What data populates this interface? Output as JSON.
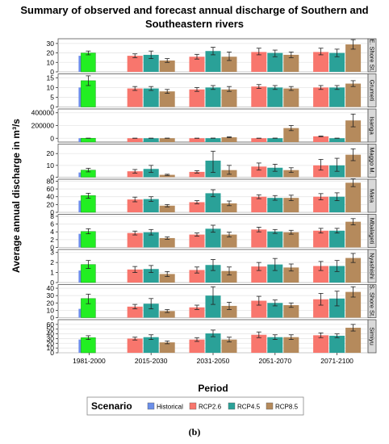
{
  "title_lines": [
    "Summary of observed and forecast annual discharge of Southern and",
    "Southeastern rivers"
  ],
  "caption": "(b)",
  "colors": {
    "Historical": "#6b8ee8",
    "HistoricalObserved": "#22ee22",
    "RCP2.6": "#f8766d",
    "RCP4.5": "#2aa198",
    "RCP8.5": "#b58a5c",
    "strip": "#d9d9d9"
  },
  "chart_data": {
    "type": "bar",
    "xlabel": "Period",
    "ylabel": "Average annual discharge in m³/s",
    "categories": [
      "1981-2000",
      "2015-2030",
      "2031-2050",
      "2051-2070",
      "2071-2100"
    ],
    "legend": {
      "title": "Scenario",
      "placement": "bottom",
      "entries": [
        "Historical",
        "RCP2.6",
        "RCP4.5",
        "RCP8.5"
      ]
    },
    "panels": [
      {
        "name": "E. Shore St.",
        "ylim": [
          0,
          35
        ],
        "yticks": [
          0,
          10,
          20,
          30
        ],
        "yticklabels": [
          "0",
          "10",
          "20",
          "30"
        ],
        "historical": {
          "value": 17,
          "observed": 20,
          "err": [
            18,
            22
          ]
        },
        "series": {
          "RCP2.6": {
            "values": [
              17,
              16,
              21,
              21
            ],
            "err": [
              [
                15,
                19
              ],
              [
                13.5,
                18.5
              ],
              [
                18,
                25
              ],
              [
                18,
                25
              ]
            ]
          },
          "RCP4.5": {
            "values": [
              18,
              22,
              20,
              20
            ],
            "err": [
              [
                14,
                22
              ],
              [
                18,
                26
              ],
              [
                16,
                23
              ],
              [
                16,
                24
              ]
            ]
          },
          "RCP8.5": {
            "values": [
              12,
              16,
              18,
              29
            ],
            "err": [
              [
                10,
                14
              ],
              [
                12,
                21
              ],
              [
                15,
                21
              ],
              [
                24,
                34
              ]
            ]
          }
        }
      },
      {
        "name": "Grumeti",
        "ylim": [
          0,
          17
        ],
        "yticks": [
          0,
          5,
          10,
          15
        ],
        "yticklabels": [
          "0",
          "5",
          "10",
          "15"
        ],
        "historical": {
          "value": 10,
          "observed": 13.5,
          "err": [
            11,
            16
          ]
        },
        "series": {
          "RCP2.6": {
            "values": [
              9.5,
              9,
              10.5,
              10
            ],
            "err": [
              [
                8.5,
                10.5
              ],
              [
                8,
                10
              ],
              [
                9.5,
                11.5
              ],
              [
                9,
                11
              ]
            ]
          },
          "RCP4.5": {
            "values": [
              9.5,
              10,
              10,
              10
            ],
            "err": [
              [
                8.5,
                10.5
              ],
              [
                9,
                11
              ],
              [
                9,
                11
              ],
              [
                9,
                11
              ]
            ]
          },
          "RCP8.5": {
            "values": [
              8,
              9,
              9.5,
              12
            ],
            "err": [
              [
                7,
                9
              ],
              [
                8,
                10.5
              ],
              [
                8.5,
                10.5
              ],
              [
                10.5,
                13.5
              ]
            ]
          }
        }
      },
      {
        "name": "Isanga",
        "ylim": [
          -60000,
          460000
        ],
        "yticks": [
          0,
          200000,
          400000
        ],
        "yticklabels": [
          "0",
          "200000",
          "400000"
        ],
        "historical": {
          "value": 400,
          "observed": 600,
          "err": [
            0,
            1200
          ]
        },
        "series": {
          "RCP2.6": {
            "values": [
              500,
              600,
              600,
              30000
            ],
            "err": [
              [
                0,
                1200
              ],
              [
                0,
                1200
              ],
              [
                0,
                1200
              ],
              [
                25000,
                35000
              ]
            ]
          },
          "RCP4.5": {
            "values": [
              600,
              1200,
              1000,
              700
            ],
            "err": [
              [
                0,
                1500
              ],
              [
                0,
                2500
              ],
              [
                0,
                2500
              ],
              [
                0,
                1500
              ]
            ]
          },
          "RCP8.5": {
            "values": [
              900,
              15000,
              160000,
              280000
            ],
            "err": [
              [
                0,
                2000
              ],
              [
                8000,
                22000
              ],
              [
                120000,
                200000
              ],
              [
                180000,
                380000
              ]
            ]
          }
        }
      },
      {
        "name": "Maggo M.",
        "ylim": [
          0,
          28
        ],
        "yticks": [
          0,
          10,
          20
        ],
        "yticklabels": [
          "0",
          "10",
          "20"
        ],
        "historical": {
          "value": 4,
          "observed": 6,
          "err": [
            4.5,
            7.5
          ]
        },
        "series": {
          "RCP2.6": {
            "values": [
              5,
              4.5,
              9,
              10
            ],
            "err": [
              [
                3.5,
                6.5
              ],
              [
                3.5,
                5.5
              ],
              [
                6,
                12
              ],
              [
                6,
                15
              ]
            ]
          },
          "RCP4.5": {
            "values": [
              7,
              14,
              8,
              10
            ],
            "err": [
              [
                4,
                10
              ],
              [
                4,
                22
              ],
              [
                5,
                11
              ],
              [
                5,
                16
              ]
            ]
          },
          "RCP8.5": {
            "values": [
              2,
              6,
              6,
              19
            ],
            "err": [
              [
                1.5,
                2.5
              ],
              [
                2.5,
                10
              ],
              [
                4,
                8
              ],
              [
                14,
                24
              ]
            ]
          }
        }
      },
      {
        "name": "Mara",
        "ylim": [
          0,
          85
        ],
        "yticks": [
          0,
          20,
          40,
          60,
          80
        ],
        "yticklabels": [
          "0",
          "20",
          "40",
          "60",
          "80"
        ],
        "historical": {
          "value": 30,
          "observed": 43,
          "err": [
            36,
            49
          ]
        },
        "series": {
          "RCP2.6": {
            "values": [
              33,
              26,
              40,
              40
            ],
            "err": [
              [
                27,
                39
              ],
              [
                22,
                30
              ],
              [
                35,
                45
              ],
              [
                32,
                48
              ]
            ]
          },
          "RCP4.5": {
            "values": [
              34,
              49,
              37,
              40
            ],
            "err": [
              [
                28,
                40
              ],
              [
                40,
                58
              ],
              [
                31,
                43
              ],
              [
                30,
                50
              ]
            ]
          },
          "RCP8.5": {
            "values": [
              17,
              23,
              37,
              76
            ],
            "err": [
              [
                14,
                20
              ],
              [
                17,
                29
              ],
              [
                30,
                44
              ],
              [
                66,
                86
              ]
            ]
          }
        }
      },
      {
        "name": "Mbalageti",
        "ylim": [
          0,
          8.5
        ],
        "yticks": [
          0,
          2,
          4,
          6,
          8
        ],
        "yticklabels": [
          "0",
          "2",
          "4",
          "6",
          "8"
        ],
        "historical": {
          "value": 3.5,
          "observed": 4.1,
          "err": [
            3.5,
            4.8
          ]
        },
        "series": {
          "RCP2.6": {
            "values": [
              3.7,
              3.3,
              4.6,
              4.3
            ],
            "err": [
              [
                3.2,
                4.2
              ],
              [
                2.9,
                3.7
              ],
              [
                4.0,
                5.2
              ],
              [
                3.7,
                4.9
              ]
            ]
          },
          "RCP4.5": {
            "values": [
              3.9,
              4.8,
              4.1,
              4.3
            ],
            "err": [
              [
                3.2,
                4.6
              ],
              [
                3.9,
                5.7
              ],
              [
                3.6,
                4.6
              ],
              [
                3.7,
                4.9
              ]
            ]
          },
          "RCP8.5": {
            "values": [
              2.4,
              3.3,
              3.9,
              6.6
            ],
            "err": [
              [
                2.1,
                2.7
              ],
              [
                2.7,
                3.9
              ],
              [
                3.4,
                4.4
              ],
              [
                5.8,
                7.4
              ]
            ]
          }
        }
      },
      {
        "name": "Nyashishi",
        "ylim": [
          0,
          3.3
        ],
        "yticks": [
          0,
          1,
          2,
          3
        ],
        "yticklabels": [
          "0",
          "1",
          "2",
          "3"
        ],
        "historical": {
          "value": 1.2,
          "observed": 1.8,
          "err": [
            1.4,
            2.2
          ]
        },
        "series": {
          "RCP2.6": {
            "values": [
              1.3,
              1.25,
              1.6,
              1.65
            ],
            "err": [
              [
                1.0,
                1.6
              ],
              [
                0.95,
                1.55
              ],
              [
                1.2,
                2.0
              ],
              [
                1.2,
                2.1
              ]
            ]
          },
          "RCP4.5": {
            "values": [
              1.35,
              1.75,
              1.8,
              1.65
            ],
            "err": [
              [
                1.0,
                1.7
              ],
              [
                1.2,
                2.3
              ],
              [
                1.2,
                2.4
              ],
              [
                1.1,
                2.2
              ]
            ]
          },
          "RCP8.5": {
            "values": [
              0.85,
              1.15,
              1.5,
              2.45
            ],
            "err": [
              [
                0.6,
                1.1
              ],
              [
                0.75,
                1.55
              ],
              [
                1.15,
                1.85
              ],
              [
                2.0,
                2.9
              ]
            ]
          }
        }
      },
      {
        "name": "S. Shore St.",
        "ylim": [
          0,
          45
        ],
        "yticks": [
          0,
          10,
          20,
          30,
          40
        ],
        "yticklabels": [
          "0",
          "10",
          "20",
          "30",
          "40"
        ],
        "historical": {
          "value": 12,
          "observed": 26,
          "err": [
            19,
            32
          ]
        },
        "series": {
          "RCP2.6": {
            "values": [
              15,
              14,
              23,
              25
            ],
            "err": [
              [
                12,
                18
              ],
              [
                11,
                17
              ],
              [
                17,
                29
              ],
              [
                17,
                33
              ]
            ]
          },
          "RCP4.5": {
            "values": [
              19,
              30,
              20,
              26
            ],
            "err": [
              [
                12,
                26
              ],
              [
                18,
                42
              ],
              [
                16,
                24
              ],
              [
                16,
                36
              ]
            ]
          },
          "RCP8.5": {
            "values": [
              9,
              16,
              17,
              35
            ],
            "err": [
              [
                7,
                11
              ],
              [
                11,
                21
              ],
              [
                14,
                20
              ],
              [
                28,
                42
              ]
            ]
          }
        }
      },
      {
        "name": "Simiyu",
        "ylim": [
          0,
          70
        ],
        "yticks": [
          0,
          10,
          20,
          30,
          40,
          50,
          60
        ],
        "yticklabels": [
          "0",
          "10",
          "20",
          "30",
          "40",
          "50",
          "60"
        ],
        "historical": {
          "value": 28,
          "observed": 32,
          "err": [
            28,
            36
          ]
        },
        "series": {
          "RCP2.6": {
            "values": [
              30,
              28,
              38,
              37
            ],
            "err": [
              [
                27,
                33
              ],
              [
                24,
                32
              ],
              [
                32,
                44
              ],
              [
                32,
                42
              ]
            ]
          },
          "RCP4.5": {
            "values": [
              33,
              41,
              33,
              36
            ],
            "err": [
              [
                28,
                38
              ],
              [
                34,
                48
              ],
              [
                28,
                38
              ],
              [
                32,
                40
              ]
            ]
          },
          "RCP8.5": {
            "values": [
              22,
              28,
              33,
              53
            ],
            "err": [
              [
                19,
                25
              ],
              [
                23,
                33
              ],
              [
                28,
                38
              ],
              [
                46,
                60
              ]
            ]
          }
        }
      }
    ]
  }
}
